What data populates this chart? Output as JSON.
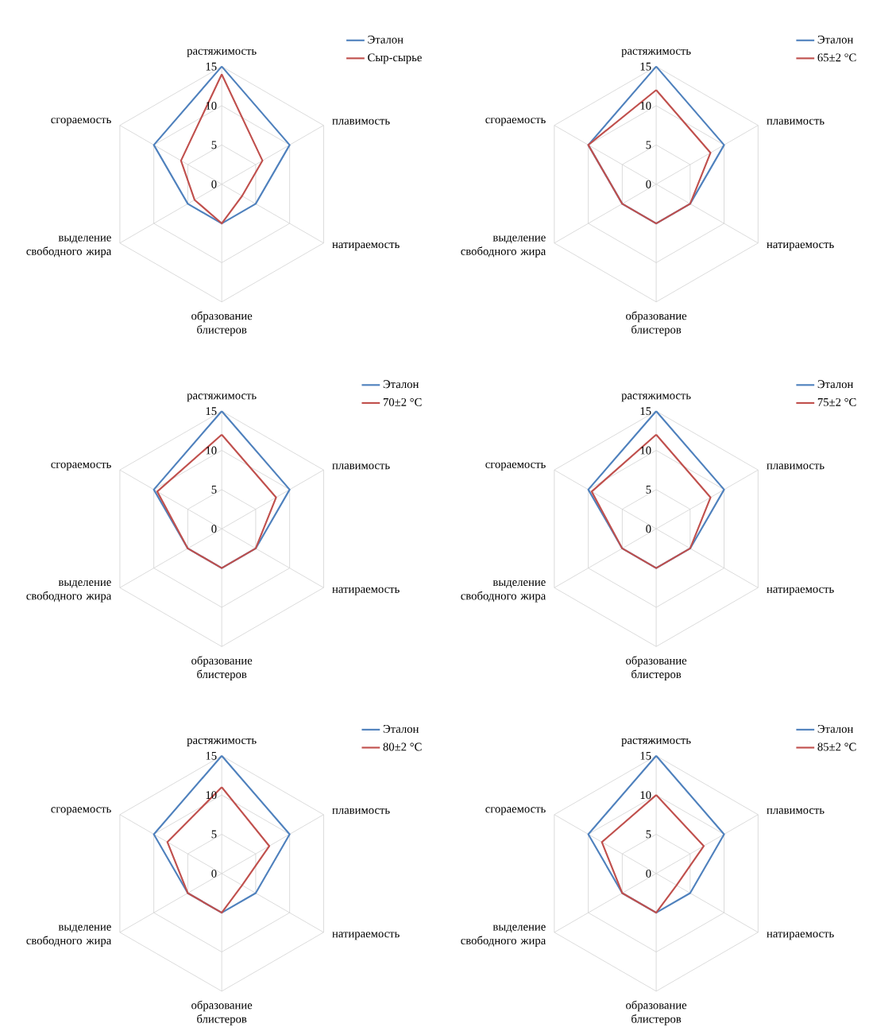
{
  "chart_data": [
    {
      "type": "radar",
      "categories": [
        "растяжимость",
        "плавимость",
        "натираемость",
        "образование блистеров",
        "выделение свободного жира",
        "сгораемость"
      ],
      "ylim": [
        0,
        15
      ],
      "yticks": [
        0,
        5,
        10,
        15
      ],
      "grid": true,
      "legend": "top right",
      "series": [
        {
          "name": "Эталон",
          "color": "#4f81bd",
          "values": [
            15,
            10,
            5,
            5,
            5,
            10
          ]
        },
        {
          "name": "Сыр-сырье",
          "color": "#c0504d",
          "values": [
            14,
            6,
            3,
            5,
            4,
            6
          ]
        }
      ]
    },
    {
      "type": "radar",
      "categories": [
        "растяжимость",
        "плавимость",
        "натираемость",
        "образование блистеров",
        "выделение свободного жира",
        "сгораемость"
      ],
      "ylim": [
        0,
        15
      ],
      "yticks": [
        0,
        5,
        10,
        15
      ],
      "grid": true,
      "legend": "top right",
      "series": [
        {
          "name": "Эталон",
          "color": "#4f81bd",
          "values": [
            15,
            10,
            5,
            5,
            5,
            10
          ]
        },
        {
          "name": "65±2 °C",
          "color": "#c0504d",
          "values": [
            12,
            8,
            5,
            5,
            5,
            10
          ]
        }
      ]
    },
    {
      "type": "radar",
      "categories": [
        "растяжимость",
        "плавимость",
        "натираемость",
        "образование блистеров",
        "выделение свободного жира",
        "сгораемость"
      ],
      "ylim": [
        0,
        15
      ],
      "yticks": [
        0,
        5,
        10,
        15
      ],
      "grid": true,
      "legend": "top right",
      "series": [
        {
          "name": "Эталон",
          "color": "#4f81bd",
          "values": [
            15,
            10,
            5,
            5,
            5,
            10
          ]
        },
        {
          "name": "70±2 °C",
          "color": "#c0504d",
          "values": [
            12,
            8,
            5,
            5,
            5,
            9.5
          ]
        }
      ]
    },
    {
      "type": "radar",
      "categories": [
        "растяжимость",
        "плавимость",
        "натираемость",
        "образование блистеров",
        "выделение свободного жира",
        "сгораемость"
      ],
      "ylim": [
        0,
        15
      ],
      "yticks": [
        0,
        5,
        10,
        15
      ],
      "grid": true,
      "legend": "top right",
      "series": [
        {
          "name": "Эталон",
          "color": "#4f81bd",
          "values": [
            15,
            10,
            5,
            5,
            5,
            10
          ]
        },
        {
          "name": "75±2 °C",
          "color": "#c0504d",
          "values": [
            12,
            8,
            5,
            5,
            5,
            9.5
          ]
        }
      ]
    },
    {
      "type": "radar",
      "categories": [
        "растяжимость",
        "плавимость",
        "натираемость",
        "образование блистеров",
        "выделение свободного жира",
        "сгораемость"
      ],
      "ylim": [
        0,
        15
      ],
      "yticks": [
        0,
        5,
        10,
        15
      ],
      "grid": true,
      "legend": "top right",
      "series": [
        {
          "name": "Эталон",
          "color": "#4f81bd",
          "values": [
            15,
            10,
            5,
            5,
            5,
            10
          ]
        },
        {
          "name": "80±2 °C",
          "color": "#c0504d",
          "values": [
            11,
            7,
            3,
            5,
            5,
            8
          ]
        }
      ]
    },
    {
      "type": "radar",
      "categories": [
        "растяжимость",
        "плавимость",
        "натираемость",
        "образование блистеров",
        "выделение свободного жира",
        "сгораемость"
      ],
      "ylim": [
        0,
        15
      ],
      "yticks": [
        0,
        5,
        10,
        15
      ],
      "grid": true,
      "legend": "top right",
      "series": [
        {
          "name": "Эталон",
          "color": "#4f81bd",
          "values": [
            15,
            10,
            5,
            5,
            5,
            10
          ]
        },
        {
          "name": "85±2 °C",
          "color": "#c0504d",
          "values": [
            10,
            7,
            3,
            5,
            5,
            8
          ]
        }
      ]
    }
  ]
}
